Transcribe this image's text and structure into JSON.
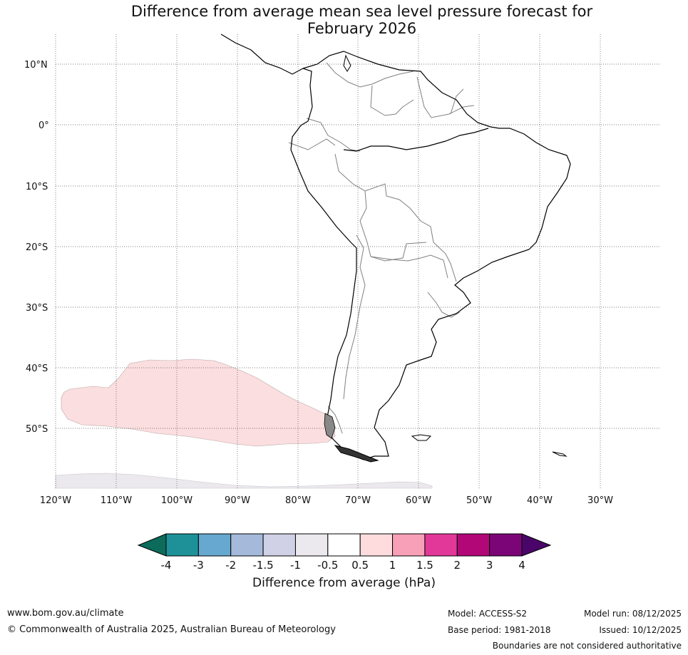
{
  "title": {
    "line1": "Difference from average mean sea level pressure forecast for",
    "line2": "February 2026"
  },
  "map": {
    "lat_labels": [
      "10°N",
      "0°",
      "10°S",
      "20°S",
      "30°S",
      "40°S",
      "50°S"
    ],
    "lon_labels": [
      "120°W",
      "110°W",
      "100°W",
      "90°W",
      "80°W",
      "70°W",
      "60°W",
      "50°W",
      "40°W",
      "30°W"
    ],
    "anomaly_regions": [
      {
        "name": "southeast-pacific-anomaly",
        "range": "0.5 to 1 hPa",
        "color": "#fbdedf"
      },
      {
        "name": "southern-ocean-anomaly",
        "range": "-1 to -0.5 hPa",
        "color": "#ebe9ed"
      }
    ]
  },
  "colorbar": {
    "ticks": [
      "-4",
      "-3",
      "-2",
      "-1.5",
      "-1",
      "-0.5",
      "0.5",
      "1",
      "1.5",
      "2",
      "3",
      "4"
    ],
    "colors": [
      "#1e9198",
      "#66a8cf",
      "#a5badb",
      "#d0d0e6",
      "#ebe9ed",
      "#ffffff",
      "#fedcdd",
      "#f8a0b8",
      "#e2389a",
      "#b10777",
      "#7b0577"
    ],
    "under_color": "#0c6b5b",
    "over_color": "#4a0568",
    "label": "Difference from average (hPa)"
  },
  "footer": {
    "url": "www.bom.gov.au/climate",
    "copyright": "© Commonwealth of Australia 2025, Australian Bureau of Meteorology",
    "model": "Model: ACCESS-S2",
    "base_period": "Base period: 1981-2018",
    "model_run": "Model run: 08/12/2025",
    "issued": "Issued: 10/12/2025",
    "disclaimer": "Boundaries are not considered authoritative"
  }
}
